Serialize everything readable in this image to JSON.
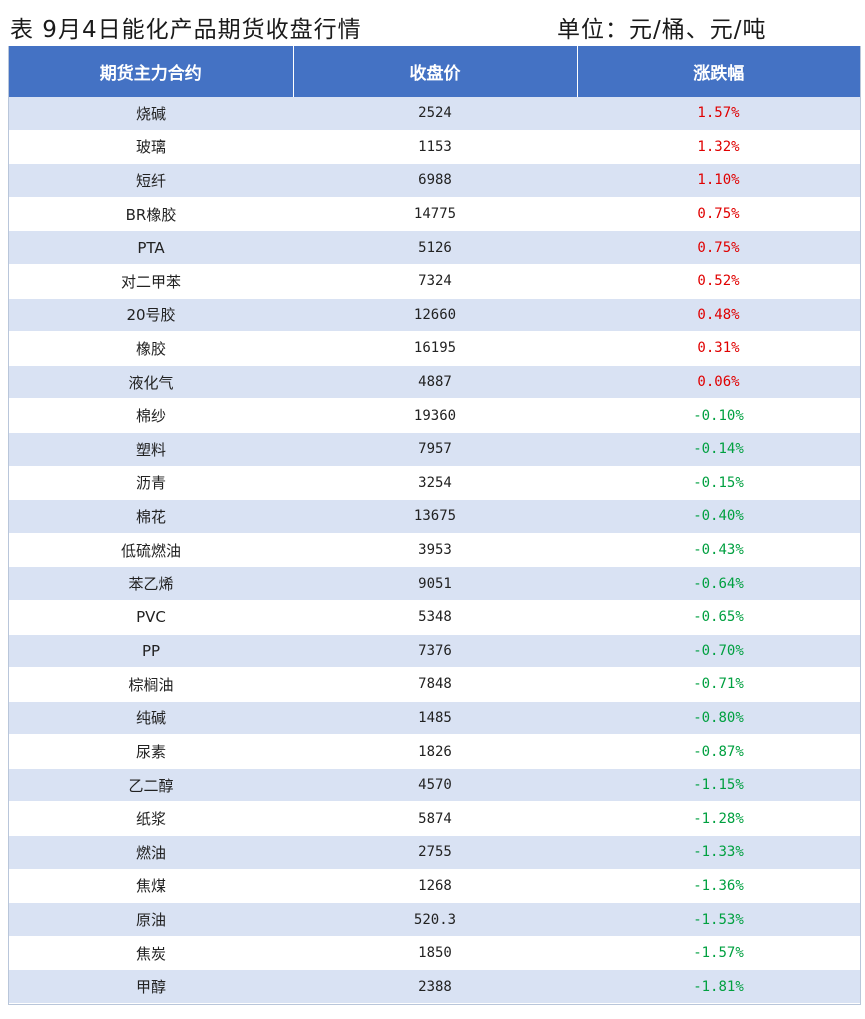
{
  "title": {
    "main": "表 9月4日能化产品期货收盘行情",
    "unit": "单位：元/桶、元/吨"
  },
  "table": {
    "headers": [
      "期货主力合约",
      "收盘价",
      "涨跌幅"
    ],
    "rows": [
      {
        "name": "烧碱",
        "price": "2524",
        "change": "1.57%"
      },
      {
        "name": "玻璃",
        "price": "1153",
        "change": "1.32%"
      },
      {
        "name": "短纤",
        "price": "6988",
        "change": "1.10%"
      },
      {
        "name": "BR橡胶",
        "price": "14775",
        "change": "0.75%"
      },
      {
        "name": "PTA",
        "price": "5126",
        "change": "0.75%"
      },
      {
        "name": "对二甲苯",
        "price": "7324",
        "change": "0.52%"
      },
      {
        "name": "20号胶",
        "price": "12660",
        "change": "0.48%"
      },
      {
        "name": "橡胶",
        "price": "16195",
        "change": "0.31%"
      },
      {
        "name": "液化气",
        "price": "4887",
        "change": "0.06%"
      },
      {
        "name": "棉纱",
        "price": "19360",
        "change": "-0.10%"
      },
      {
        "name": "塑料",
        "price": "7957",
        "change": "-0.14%"
      },
      {
        "name": "沥青",
        "price": "3254",
        "change": "-0.15%"
      },
      {
        "name": "棉花",
        "price": "13675",
        "change": "-0.40%"
      },
      {
        "name": "低硫燃油",
        "price": "3953",
        "change": "-0.43%"
      },
      {
        "name": "苯乙烯",
        "price": "9051",
        "change": "-0.64%"
      },
      {
        "name": "PVC",
        "price": "5348",
        "change": "-0.65%"
      },
      {
        "name": "PP",
        "price": "7376",
        "change": "-0.70%"
      },
      {
        "name": "棕榈油",
        "price": "7848",
        "change": "-0.71%"
      },
      {
        "name": "纯碱",
        "price": "1485",
        "change": "-0.80%"
      },
      {
        "name": "尿素",
        "price": "1826",
        "change": "-0.87%"
      },
      {
        "name": "乙二醇",
        "price": "4570",
        "change": "-1.15%"
      },
      {
        "name": "纸浆",
        "price": "5874",
        "change": "-1.28%"
      },
      {
        "name": "燃油",
        "price": "2755",
        "change": "-1.33%"
      },
      {
        "name": "焦煤",
        "price": "1268",
        "change": "-1.36%"
      },
      {
        "name": "原油",
        "price": "520.3",
        "change": "-1.53%"
      },
      {
        "name": "焦炭",
        "price": "1850",
        "change": "-1.57%"
      },
      {
        "name": "甲醇",
        "price": "2388",
        "change": "-1.81%"
      }
    ]
  },
  "colors": {
    "header_bg": "#4472c4",
    "band_bg": "#d9e2f3",
    "up": "#e00000",
    "down": "#00a040"
  }
}
